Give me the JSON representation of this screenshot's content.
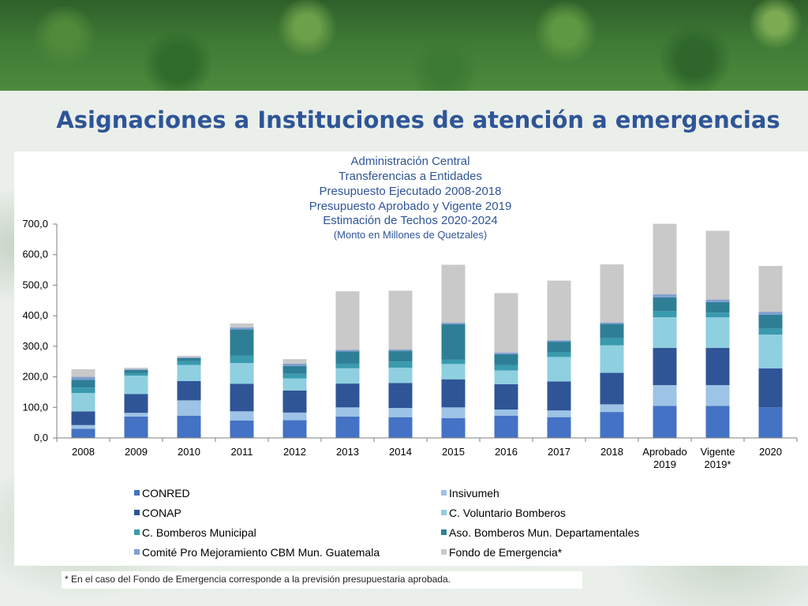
{
  "slide": {
    "title": "Asignaciones a Instituciones de atención a emergencias",
    "footnote": "* En el caso del Fondo de Emergencia corresponde a la previsión presupuestaria aprobada."
  },
  "chart_data": {
    "type": "bar",
    "stacked": true,
    "title_lines": [
      "Administración Central",
      "Transferencias a Entidades",
      "Presupuesto Ejecutado 2008-2018",
      "Presupuesto Aprobado y Vigente 2019",
      "Estimación de Techos 2020-2024",
      "(Monto en Millones de Quetzales)"
    ],
    "categories": [
      "2008",
      "2009",
      "2010",
      "2011",
      "2012",
      "2013",
      "2014",
      "2015",
      "2016",
      "2017",
      "2018",
      [
        "Aprobado",
        "2019"
      ],
      [
        "Vigente",
        "2019*"
      ],
      "2020"
    ],
    "ylim": [
      0,
      700
    ],
    "yticks": [
      "0,0",
      "100,0",
      "200,0",
      "300,0",
      "400,0",
      "500,0",
      "600,0",
      "700,0"
    ],
    "grid": false,
    "legend_position": "bottom",
    "series": [
      {
        "name": "CONRED",
        "color": "#4472c4",
        "values": [
          30,
          70,
          73,
          57,
          58,
          70,
          68,
          65,
          73,
          68,
          85,
          105,
          105,
          100
        ]
      },
      {
        "name": "Insivumeh",
        "color": "#9dc3e6",
        "values": [
          12,
          12,
          50,
          30,
          25,
          30,
          30,
          35,
          20,
          22,
          25,
          68,
          68,
          0
        ]
      },
      {
        "name": "CONAP",
        "color": "#2f5597",
        "values": [
          45,
          62,
          63,
          90,
          72,
          78,
          82,
          92,
          83,
          95,
          103,
          122,
          122,
          128
        ]
      },
      {
        "name": "C. Voluntario Bomberos",
        "color": "#8ecfe0",
        "values": [
          60,
          60,
          53,
          68,
          40,
          50,
          50,
          50,
          45,
          80,
          90,
          100,
          100,
          110
        ]
      },
      {
        "name": "C. Bomberos Municipal",
        "color": "#3a9aae",
        "values": [
          18,
          8,
          12,
          25,
          15,
          15,
          20,
          15,
          18,
          15,
          25,
          20,
          15,
          20
        ]
      },
      {
        "name": "Aso. Bomberos Mun. Departamentales",
        "color": "#2e7f96",
        "values": [
          25,
          10,
          10,
          85,
          25,
          40,
          35,
          115,
          35,
          35,
          45,
          45,
          35,
          45
        ]
      },
      {
        "name": "Comité Pro Mejoramiento CBM Mun. Guatemala",
        "color": "#7f9fcf",
        "values": [
          10,
          3,
          3,
          7,
          8,
          5,
          5,
          5,
          5,
          5,
          5,
          10,
          8,
          10
        ]
      },
      {
        "name": "Fondo de Emergencia*",
        "color": "#c9c9c9",
        "values": [
          25,
          5,
          5,
          13,
          15,
          192,
          192,
          190,
          195,
          195,
          190,
          231,
          225,
          150
        ]
      }
    ]
  }
}
